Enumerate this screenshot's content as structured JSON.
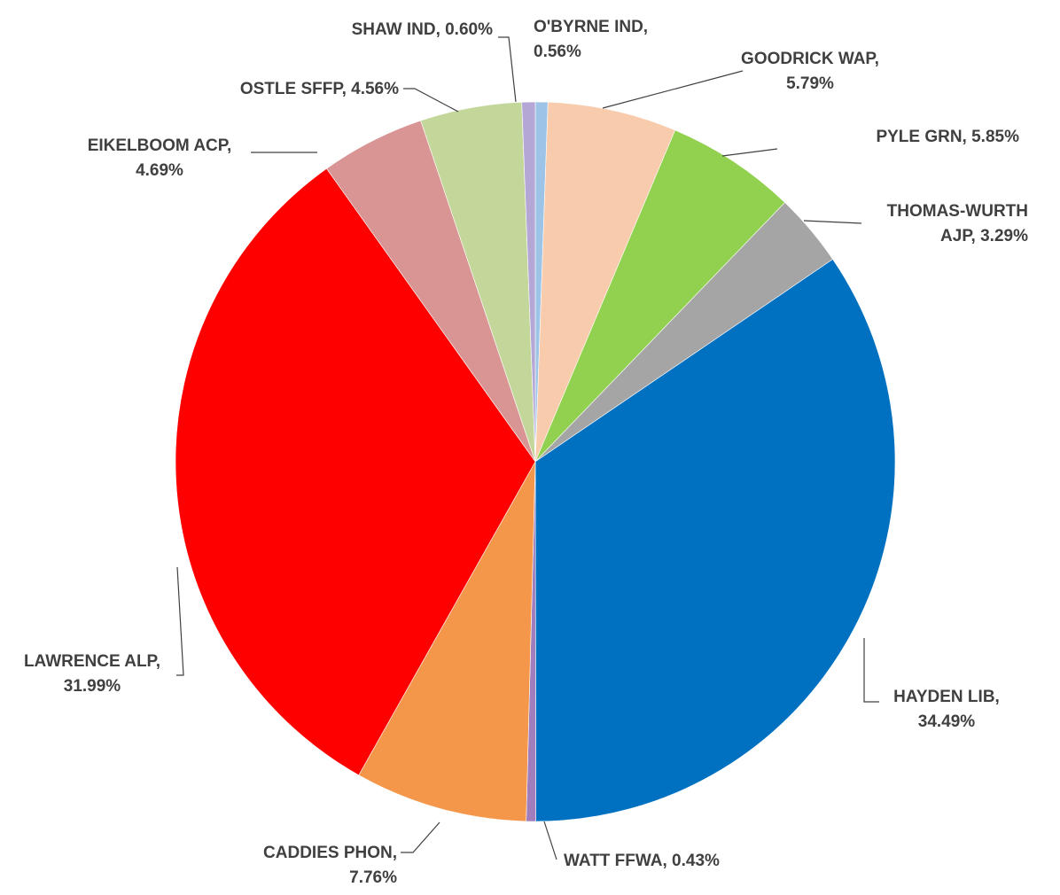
{
  "chart_data": {
    "type": "pie",
    "start_angle_deg": 0,
    "direction": "clockwise",
    "legend": "none",
    "title": "",
    "slices": [
      {
        "name": "O'BYRNE IND",
        "value": 0.56,
        "label_text": "O'BYRNE IND,",
        "value_text": "0.56%",
        "color": "#9DC3E6"
      },
      {
        "name": "GOODRICK WAP",
        "value": 5.79,
        "label_text": "GOODRICK WAP,",
        "value_text": "5.79%",
        "color": "#F8CBAD"
      },
      {
        "name": "PYLE GRN",
        "value": 5.85,
        "label_text": "PYLE GRN, 5.85%",
        "value_text": "",
        "color": "#92D050"
      },
      {
        "name": "THOMAS-WURTH AJP",
        "value": 3.29,
        "label_text": "THOMAS-WURTH",
        "value_text": "AJP, 3.29%",
        "color": "#A5A5A5"
      },
      {
        "name": "HAYDEN LIB",
        "value": 34.49,
        "label_text": "HAYDEN LIB,",
        "value_text": "34.49%",
        "color": "#0070C0"
      },
      {
        "name": "WATT FFWA",
        "value": 0.43,
        "label_text": "WATT FFWA, 0.43%",
        "value_text": "",
        "color": "#A07EBE"
      },
      {
        "name": "CADDIES PHON",
        "value": 7.76,
        "label_text": "CADDIES PHON,",
        "value_text": "7.76%",
        "color": "#F4974A"
      },
      {
        "name": "LAWRENCE ALP",
        "value": 31.99,
        "label_text": "LAWRENCE ALP,",
        "value_text": "31.99%",
        "color": "#FF0000"
      },
      {
        "name": "EIKELBOOM ACP",
        "value": 4.69,
        "label_text": "EIKELBOOM ACP,",
        "value_text": "4.69%",
        "color": "#D99594"
      },
      {
        "name": "OSTLE SFFP",
        "value": 4.56,
        "label_text": "OSTLE SFFP, 4.56%",
        "value_text": "",
        "color": "#C4D79B"
      },
      {
        "name": "SHAW IND",
        "value": 0.6,
        "label_text": "SHAW IND, 0.60%",
        "value_text": "",
        "color": "#B4A7D6"
      }
    ]
  }
}
